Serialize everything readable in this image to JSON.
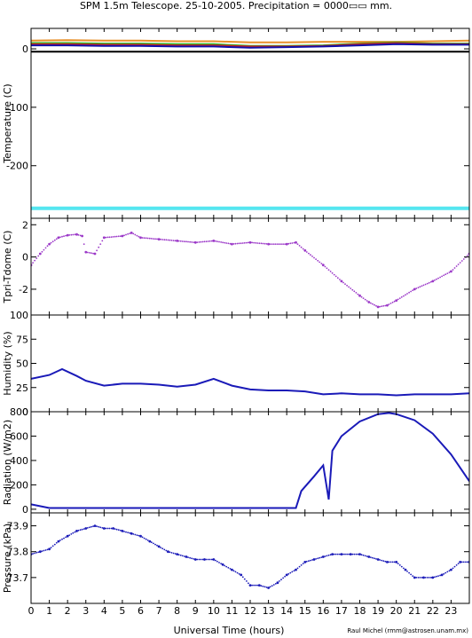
{
  "figure": {
    "title": "SPM 1.5m Telescope. 25-10-2005. Precipitation = 0000▭▭ mm.",
    "xlabel": "Universal Time (hours)",
    "credit": "Raul Michel (rmm@astrosen.unam.mx)"
  },
  "chart_data": [
    {
      "type": "line",
      "ylabel": "Temperature (C)",
      "xlim": [
        0,
        24
      ],
      "ylim": [
        -290,
        35
      ],
      "yticks": [
        0,
        -100,
        -200
      ],
      "series": [
        {
          "color": "#e8902a",
          "x": [
            0,
            2,
            4,
            6,
            8,
            10,
            12,
            14,
            16,
            18,
            20,
            22,
            24
          ],
          "y": [
            14,
            15,
            14,
            14,
            13,
            13,
            11,
            11,
            12,
            12,
            12,
            13,
            14
          ]
        },
        {
          "color": "#22bb22",
          "x": [
            0,
            2,
            4,
            6,
            8,
            10,
            12,
            14,
            16,
            18,
            20,
            22,
            24
          ],
          "y": [
            10,
            10,
            9,
            9,
            8,
            8,
            5,
            5,
            6,
            9,
            11,
            9,
            9
          ]
        },
        {
          "color": "#cc2222",
          "x": [
            0,
            2,
            4,
            6,
            8,
            10,
            12,
            14,
            16,
            18,
            20,
            22,
            24
          ],
          "y": [
            8,
            8,
            7,
            7,
            6,
            6,
            4,
            4,
            5,
            8,
            10,
            8,
            8
          ]
        },
        {
          "color": "#1010aa",
          "x": [
            0,
            2,
            4,
            6,
            8,
            10,
            12,
            14,
            16,
            18,
            20,
            22,
            24
          ],
          "y": [
            6,
            6,
            5,
            5,
            4,
            4,
            2,
            3,
            4,
            6,
            8,
            7,
            7
          ]
        },
        {
          "color": "#000000",
          "x": [
            0,
            24
          ],
          "y": [
            -5,
            -5
          ]
        },
        {
          "color": "#55e6f0",
          "x": [
            0,
            24
          ],
          "y": [
            -273,
            -273
          ]
        }
      ]
    },
    {
      "type": "scatter",
      "ylabel": "Tpri-Tdome (C)",
      "xlim": [
        0,
        24
      ],
      "ylim": [
        -3.6,
        2.4
      ],
      "yticks": [
        2,
        0,
        -2
      ],
      "series": [
        {
          "color": "#9b38c8",
          "x": [
            0,
            0.5,
            1,
            1.5,
            2,
            2.5,
            2.8,
            3,
            3.5,
            4,
            5,
            5.5,
            6,
            7,
            8,
            9,
            10,
            11,
            12,
            13,
            14,
            14.5,
            15,
            16,
            17,
            18,
            18.5,
            19,
            19.5,
            20,
            21,
            22,
            23,
            24
          ],
          "y": [
            -0.5,
            0.2,
            0.8,
            1.2,
            1.35,
            1.4,
            1.3,
            0.3,
            0.2,
            1.2,
            1.3,
            1.5,
            1.2,
            1.1,
            1.0,
            0.9,
            1.0,
            0.8,
            0.9,
            0.8,
            0.8,
            0.9,
            0.4,
            -0.5,
            -1.5,
            -2.4,
            -2.8,
            -3.1,
            -3.0,
            -2.7,
            -2.0,
            -1.5,
            -0.9,
            0.2
          ]
        }
      ]
    },
    {
      "type": "line",
      "ylabel": "Humidity (%)",
      "xlim": [
        0,
        24
      ],
      "ylim": [
        0,
        100
      ],
      "yticks": [
        0,
        25,
        50,
        75,
        100
      ],
      "series": [
        {
          "color": "#1a1ab8",
          "x": [
            0,
            1,
            1.7,
            2.5,
            3,
            4,
            5,
            6,
            7,
            8,
            9,
            10,
            11,
            12,
            13,
            14,
            15,
            16,
            17,
            18,
            19,
            20,
            21,
            22,
            23,
            24
          ],
          "y": [
            34,
            38,
            44,
            37,
            32,
            27,
            29,
            29,
            28,
            26,
            28,
            34,
            27,
            23,
            22,
            22,
            21,
            18,
            19,
            18,
            18,
            17,
            18,
            18,
            18,
            19
          ]
        }
      ]
    },
    {
      "type": "line",
      "ylabel": "Radiation (W/m2)",
      "xlim": [
        0,
        24
      ],
      "ylim": [
        -30,
        800
      ],
      "yticks": [
        0,
        200,
        400,
        600,
        800
      ],
      "series": [
        {
          "color": "#1a1ab8",
          "x": [
            0,
            1,
            2,
            5,
            10,
            14.5,
            14.8,
            15.5,
            16,
            16.3,
            16.5,
            17,
            18,
            19,
            19.6,
            20,
            21,
            22,
            23,
            24
          ],
          "y": [
            40,
            10,
            10,
            10,
            10,
            10,
            150,
            270,
            360,
            80,
            480,
            600,
            720,
            780,
            790,
            780,
            730,
            620,
            450,
            230
          ]
        }
      ]
    },
    {
      "type": "scatter",
      "ylabel": "Pressure (kPa)",
      "xlim": [
        0,
        24
      ],
      "ylim": [
        73.6,
        73.95
      ],
      "yticks": [
        73.7,
        73.8,
        73.9
      ],
      "series": [
        {
          "color": "#1a1ab8",
          "x": [
            0,
            0.5,
            1,
            1.5,
            2,
            2.5,
            3,
            3.5,
            4,
            4.5,
            5,
            5.5,
            6,
            6.5,
            7,
            7.5,
            8,
            8.5,
            9,
            9.5,
            10,
            10.5,
            11,
            11.5,
            12,
            12.5,
            13,
            13.5,
            14,
            14.5,
            15,
            15.5,
            16,
            16.5,
            17,
            17.5,
            18,
            18.5,
            19,
            19.5,
            20,
            20.5,
            21,
            21.5,
            22,
            22.5,
            23,
            23.5,
            24
          ],
          "y": [
            73.79,
            73.8,
            73.81,
            73.84,
            73.86,
            73.88,
            73.89,
            73.9,
            73.89,
            73.89,
            73.88,
            73.87,
            73.86,
            73.84,
            73.82,
            73.8,
            73.79,
            73.78,
            73.77,
            73.77,
            73.77,
            73.75,
            73.73,
            73.71,
            73.67,
            73.67,
            73.66,
            73.68,
            73.71,
            73.73,
            73.76,
            73.77,
            73.78,
            73.79,
            73.79,
            73.79,
            73.79,
            73.78,
            73.77,
            73.76,
            73.76,
            73.73,
            73.7,
            73.7,
            73.7,
            73.71,
            73.73,
            73.76,
            73.76
          ]
        }
      ]
    }
  ],
  "xticks": [
    0,
    1,
    2,
    3,
    4,
    5,
    6,
    7,
    8,
    9,
    10,
    11,
    12,
    13,
    14,
    15,
    16,
    17,
    18,
    19,
    20,
    21,
    22,
    23
  ]
}
